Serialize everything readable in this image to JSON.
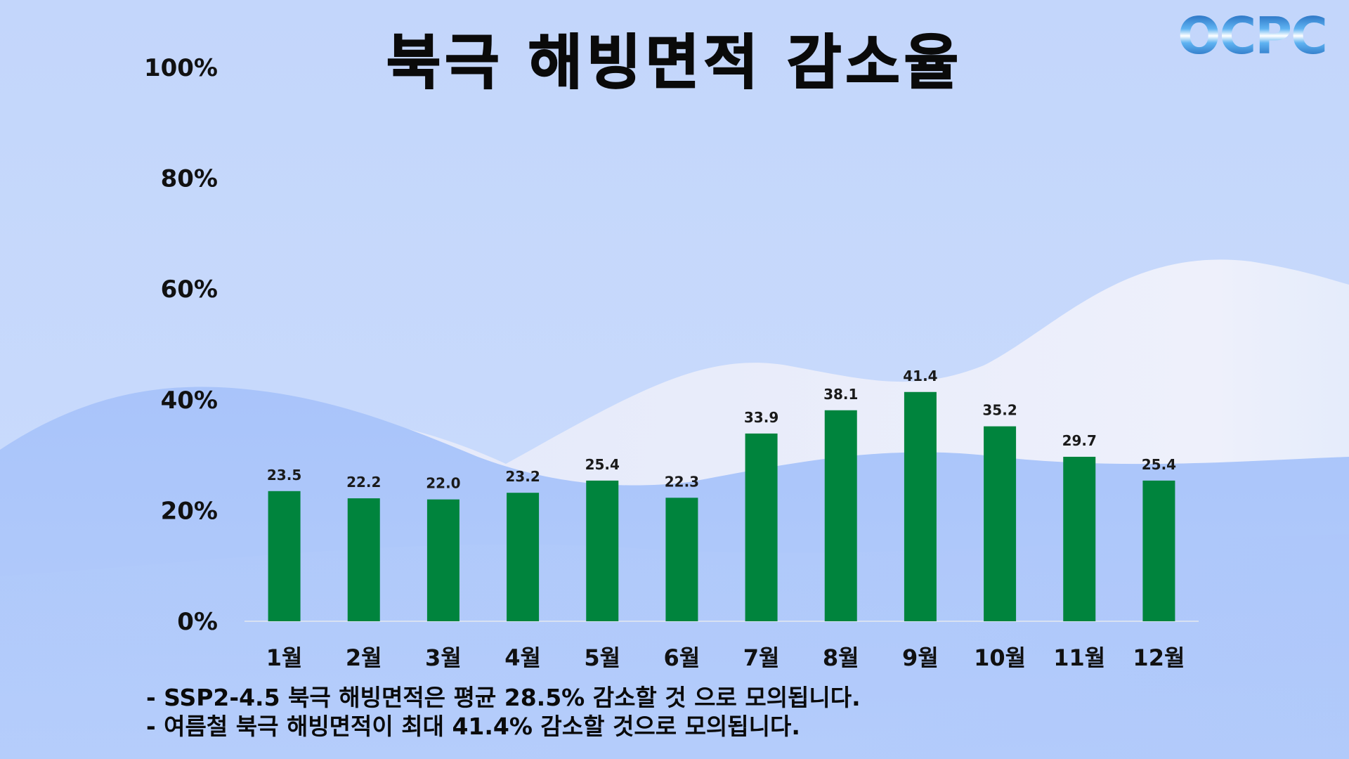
{
  "title": "북극 해빙면적 감소율",
  "logo": {
    "text": "OCPC",
    "colors": [
      "#0c4ea8",
      "#5fb3f2",
      "#ffffff"
    ]
  },
  "notes": [
    "- SSP2-4.5 북극 해빙면적은 평균 28.5% 감소할 것 으로 모의됩니다.",
    "- 여름철 북극 해빙면적이 최대 41.4% 감소할 것으로 모의됩니다."
  ],
  "chart_data": {
    "type": "bar",
    "title": "북극 해빙면적 감소율",
    "categories": [
      "1월",
      "2월",
      "3월",
      "4월",
      "5월",
      "6월",
      "7월",
      "8월",
      "9월",
      "10월",
      "11월",
      "12월"
    ],
    "values": [
      23.5,
      22.2,
      22.0,
      23.2,
      25.4,
      22.3,
      33.9,
      38.1,
      41.4,
      35.2,
      29.7,
      25.4
    ],
    "value_labels": [
      "23.5",
      "22.2",
      "22.0",
      "23.2",
      "25.4",
      "22.3",
      "33.9",
      "38.1",
      "41.4",
      "35.2",
      "29.7",
      "25.4"
    ],
    "y_ticks": [
      0,
      20,
      40,
      60,
      80,
      100
    ],
    "y_tick_labels": [
      "0%",
      "20%",
      "40%",
      "60%",
      "80%",
      "100%"
    ],
    "ylim": [
      0,
      100
    ],
    "xlabel": "",
    "ylabel": "",
    "grid": false,
    "bar_color": "#00843d"
  }
}
